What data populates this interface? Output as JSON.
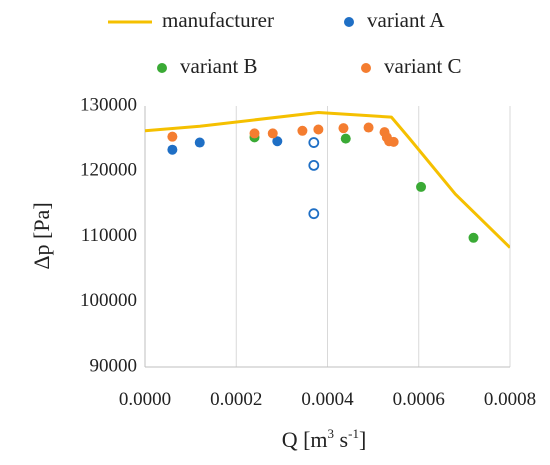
{
  "chart_data": {
    "type": "scatter",
    "xlabel": {
      "main": "Q [m",
      "sup": "3",
      "mid": " s",
      "sup2": "-1",
      "end": "]"
    },
    "ylabel": "Δp [Pa]",
    "xlim": [
      0,
      0.0008
    ],
    "ylim": [
      90000,
      130000
    ],
    "x_ticks": [
      "0.0000",
      "0.0002",
      "0.0004",
      "0.0006",
      "0.0008"
    ],
    "x_tick_values": [
      0,
      0.0002,
      0.0004,
      0.0006,
      0.0008
    ],
    "y_ticks": [
      "90000",
      "100000",
      "110000",
      "120000",
      "130000"
    ],
    "y_tick_values": [
      90000,
      100000,
      110000,
      120000,
      130000
    ],
    "grid": "vertical",
    "legend_position": "top",
    "series": [
      {
        "name": "manufacturer",
        "kind": "line",
        "color": "#f5c000",
        "points": [
          [
            0,
            126200
          ],
          [
            0.00012,
            126900
          ],
          [
            0.00038,
            129000
          ],
          [
            0.00054,
            128300
          ],
          [
            0.00058,
            125000
          ],
          [
            0.00068,
            116500
          ],
          [
            0.0008,
            108300
          ]
        ]
      },
      {
        "name": "variant A",
        "kind": "marker",
        "color": "#1f6fc5",
        "points": [
          [
            6e-05,
            123300
          ],
          [
            0.00012,
            124400
          ],
          [
            0.00029,
            124600
          ]
        ],
        "open_points": [
          [
            0.00037,
            124400
          ],
          [
            0.00037,
            120900
          ],
          [
            0.00037,
            113500
          ]
        ]
      },
      {
        "name": "variant B",
        "kind": "marker",
        "color": "#3aaa35",
        "points": [
          [
            0.00024,
            125200
          ],
          [
            0.00044,
            125000
          ],
          [
            0.000605,
            117600
          ],
          [
            0.00072,
            109800
          ]
        ]
      },
      {
        "name": "variant C",
        "kind": "marker",
        "color": "#f47d30",
        "points": [
          [
            6e-05,
            125300
          ],
          [
            0.00024,
            125800
          ],
          [
            0.00028,
            125800
          ],
          [
            0.000345,
            126200
          ],
          [
            0.00038,
            126400
          ],
          [
            0.000435,
            126600
          ],
          [
            0.00049,
            126700
          ],
          [
            0.000525,
            126000
          ],
          [
            0.00053,
            125200
          ],
          [
            0.000535,
            124600
          ],
          [
            0.000545,
            124500
          ]
        ]
      }
    ]
  }
}
